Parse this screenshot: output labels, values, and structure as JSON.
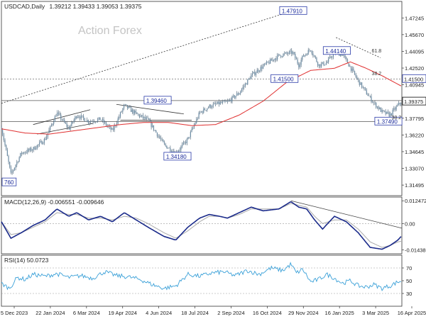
{
  "chart_data": {
    "type": "line",
    "style": "candlestick",
    "header": {
      "symbol_line": "USDCAD,Daily",
      "ohlc": "1.39212 1.39433 1.39053 1.39375"
    },
    "watermark": "Action Forex",
    "price_axis": {
      "range": [
        1.305,
        1.488
      ],
      "ticks": [
        "1.47245",
        "1.45670",
        "1.44095",
        "1.42520",
        "1.40945",
        "1.39375",
        "1.37795",
        "1.36220",
        "1.34645",
        "1.33070",
        "1.31495"
      ],
      "tick_values": [
        1.47245,
        1.4567,
        1.44095,
        1.4252,
        1.40945,
        1.39375,
        1.37795,
        1.3622,
        1.34645,
        1.3307,
        1.31495
      ],
      "current_price": "1.39375",
      "highlight_level": "1.41500",
      "grid": false
    },
    "x_axis": {
      "dates": [
        "5 Dec 2023",
        "22 Jan 2024",
        "6 Mar 2024",
        "19 Apr 2024",
        "4 Jun 2024",
        "18 Jul 2024",
        "2 Sep 2024",
        "16 Oct 2024",
        "29 Nov 2024",
        "16 Jan 2025",
        "3 Mar 2025",
        "16 Apr 2025"
      ],
      "range_days": [
        0,
        505
      ]
    },
    "price_path": {
      "days": [
        0,
        12,
        25,
        40,
        55,
        70,
        85,
        95,
        110,
        125,
        140,
        155,
        170,
        185,
        205,
        220,
        235,
        250,
        262,
        275,
        285,
        300,
        315,
        330,
        350,
        367,
        375,
        380,
        390,
        400,
        410,
        420,
        430,
        440,
        450,
        460,
        470,
        480,
        490,
        500,
        505
      ],
      "close": [
        1.369,
        1.325,
        1.345,
        1.349,
        1.358,
        1.383,
        1.368,
        1.381,
        1.375,
        1.377,
        1.366,
        1.39,
        1.382,
        1.376,
        1.353,
        1.345,
        1.358,
        1.383,
        1.389,
        1.392,
        1.393,
        1.402,
        1.418,
        1.427,
        1.437,
        1.44,
        1.428,
        1.436,
        1.443,
        1.428,
        1.43,
        1.44,
        1.438,
        1.426,
        1.413,
        1.402,
        1.392,
        1.384,
        1.381,
        1.39,
        1.394
      ]
    },
    "sma55_path": {
      "days": [
        0,
        30,
        60,
        90,
        120,
        150,
        180,
        210,
        240,
        270,
        300,
        330,
        360,
        390,
        420,
        440,
        460,
        480,
        505
      ],
      "value": [
        1.368,
        1.364,
        1.363,
        1.366,
        1.369,
        1.372,
        1.374,
        1.374,
        1.371,
        1.372,
        1.381,
        1.394,
        1.412,
        1.423,
        1.425,
        1.431,
        1.425,
        1.418,
        1.408
      ]
    },
    "callouts": [
      {
        "label": "1.47910",
        "day": 368,
        "price": 1.4791
      },
      {
        "label": "1.39460",
        "day": 197,
        "price": 1.3946
      },
      {
        "label": "1.34180",
        "day": 222,
        "price": 1.3418
      },
      {
        "label": "1.41500",
        "day": 357,
        "price": 1.415
      },
      {
        "label": "1.44140",
        "day": 423,
        "price": 1.4414
      },
      {
        "label": "1.37490",
        "day": 488,
        "price": 1.3749
      },
      {
        "label": "760",
        "day": 3,
        "price": 1.3176
      }
    ],
    "levels": [
      {
        "price": 1.415,
        "style": "dotted"
      },
      {
        "price": 1.3946,
        "style": "solid"
      },
      {
        "price": 1.3749,
        "style": "solid"
      }
    ],
    "fib_labels": [
      {
        "label": "61.8",
        "day": 467,
        "price": 1.4399
      },
      {
        "label": "38.2",
        "day": 467,
        "price": 1.4185
      },
      {
        "label": "38.2",
        "day": 492,
        "price": 1.377
      }
    ],
    "trendlines": [
      {
        "from": [
          0,
          1.392
        ],
        "to": [
          367,
          1.4791
        ],
        "style": "dotted"
      },
      {
        "from": [
          422,
          1.454
        ],
        "to": [
          478,
          1.435
        ],
        "style": "dotted"
      },
      {
        "from": [
          45,
          1.363
        ],
        "to": [
          115,
          1.373
        ],
        "style": "solid"
      },
      {
        "from": [
          40,
          1.372
        ],
        "to": [
          112,
          1.386
        ],
        "style": "solid"
      },
      {
        "from": [
          145,
          1.391
        ],
        "to": [
          230,
          1.382
        ],
        "style": "solid"
      },
      {
        "from": [
          150,
          1.376
        ],
        "to": [
          240,
          1.376
        ],
        "style": "solid"
      }
    ],
    "macd": {
      "label": "MACD(12,26,9) -0.006551 -0.009646",
      "ticks": [
        "0.012472",
        "0.00",
        "-0.014389"
      ],
      "tick_values": [
        0.012472,
        0.0,
        -0.014389
      ],
      "range": [
        -0.0165,
        0.0145
      ],
      "days": [
        0,
        12,
        25,
        40,
        55,
        70,
        85,
        95,
        110,
        125,
        140,
        155,
        170,
        185,
        205,
        220,
        235,
        250,
        262,
        275,
        285,
        300,
        315,
        330,
        350,
        365,
        375,
        385,
        395,
        405,
        420,
        435,
        450,
        465,
        480,
        490,
        500,
        505
      ],
      "values": [
        0.001,
        -0.008,
        -0.005,
        -0.001,
        0.002,
        0.008,
        0.004,
        0.006,
        0.002,
        0.004,
        0.001,
        0.006,
        0.002,
        -0.002,
        -0.007,
        -0.009,
        -0.002,
        0.003,
        0.005,
        0.004,
        0.003,
        0.006,
        0.009,
        0.007,
        0.008,
        0.012,
        0.009,
        0.008,
        0.002,
        -0.003,
        0.004,
        0.001,
        -0.005,
        -0.013,
        -0.014,
        -0.012,
        -0.009,
        -0.0066
      ],
      "signal_values": [
        0.001,
        -0.006,
        -0.005,
        -0.002,
        0.001,
        0.006,
        0.005,
        0.005,
        0.003,
        0.003,
        0.002,
        0.004,
        0.003,
        0.0,
        -0.005,
        -0.008,
        -0.004,
        0.001,
        0.004,
        0.004,
        0.003,
        0.005,
        0.008,
        0.008,
        0.008,
        0.011,
        0.01,
        0.009,
        0.004,
        0.0,
        0.002,
        0.002,
        -0.003,
        -0.01,
        -0.013,
        -0.012,
        -0.01,
        -0.0096
      ],
      "divergence_line": {
        "from": [
          365,
          0.0125
        ],
        "to": [
          505,
          -0.0025
        ]
      }
    },
    "rsi": {
      "label": "RSI(14) 50.0723",
      "ticks": [
        "70",
        "50",
        "30"
      ],
      "range": [
        10,
        90
      ],
      "days": [
        0,
        10,
        20,
        30,
        40,
        55,
        70,
        85,
        100,
        115,
        130,
        145,
        160,
        175,
        190,
        205,
        220,
        235,
        250,
        265,
        280,
        295,
        310,
        325,
        340,
        355,
        365,
        372,
        380,
        390,
        400,
        410,
        420,
        430,
        440,
        450,
        460,
        470,
        480,
        490,
        500,
        505
      ],
      "values": [
        46,
        38,
        55,
        52,
        60,
        57,
        61,
        55,
        58,
        54,
        64,
        58,
        56,
        52,
        44,
        38,
        42,
        60,
        57,
        62,
        64,
        58,
        66,
        60,
        70,
        66,
        76,
        62,
        68,
        48,
        52,
        60,
        54,
        46,
        50,
        42,
        40,
        44,
        38,
        42,
        48,
        50
      ]
    }
  }
}
